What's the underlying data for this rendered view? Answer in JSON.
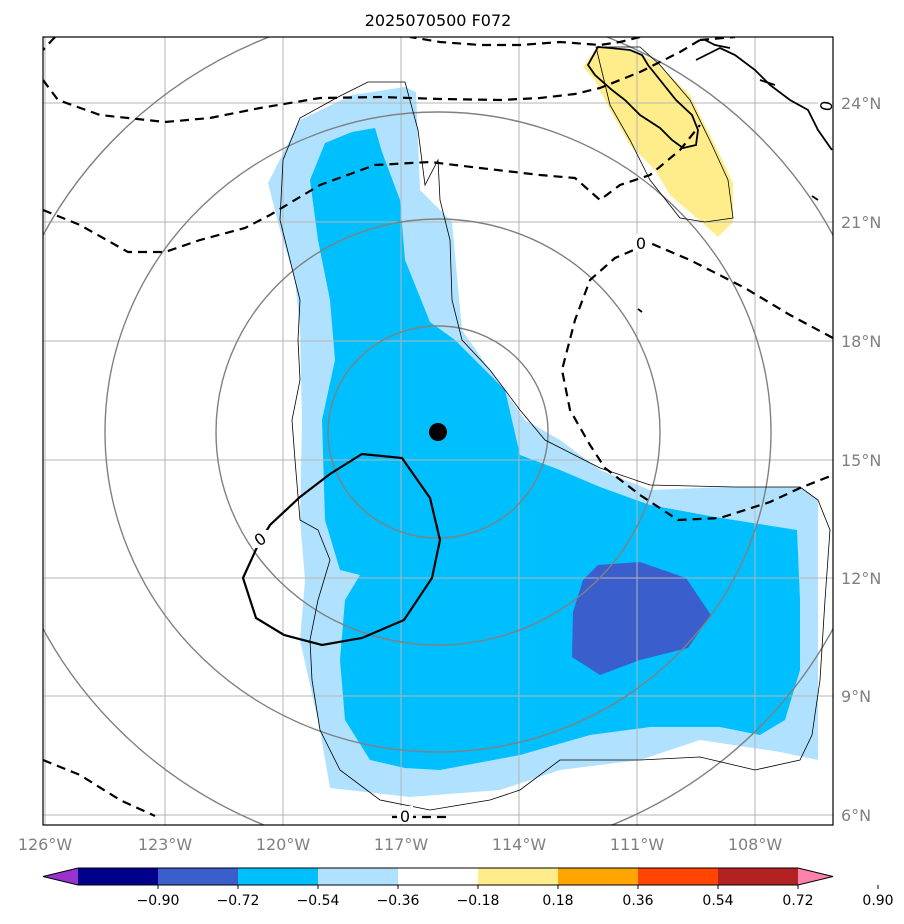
{
  "title": "2025070500 F072",
  "lon_labels": [
    "126°W",
    "123°W",
    "120°W",
    "117°W",
    "114°W",
    "111°W",
    "108°W"
  ],
  "lat_labels": [
    "24°N",
    "21°N",
    "18°N",
    "15°N",
    "12°N",
    "9°N",
    "6°N"
  ],
  "colorbar": {
    "tick_labels": [
      "−0.90",
      "−0.72",
      "−0.54",
      "−0.36",
      "−0.18",
      "0.18",
      "0.36",
      "0.54",
      "0.72",
      "0.90"
    ],
    "colors": [
      "#9a32cd",
      "#00008b",
      "#3a5fcd",
      "#00bfff",
      "#b0e2ff",
      "#ffffff",
      "#ffec8b",
      "#ffa500",
      "#ff4500",
      "#b22222",
      "#ff82ab"
    ]
  },
  "contour_labels": {
    "zero": "0"
  },
  "map": {
    "center_marker": "storm-center",
    "fill_colors": {
      "light_blue": "#b0e2ff",
      "blue": "#00bfff",
      "dark_blue": "#3a5fcd",
      "yellow": "#ffec8b"
    }
  }
}
